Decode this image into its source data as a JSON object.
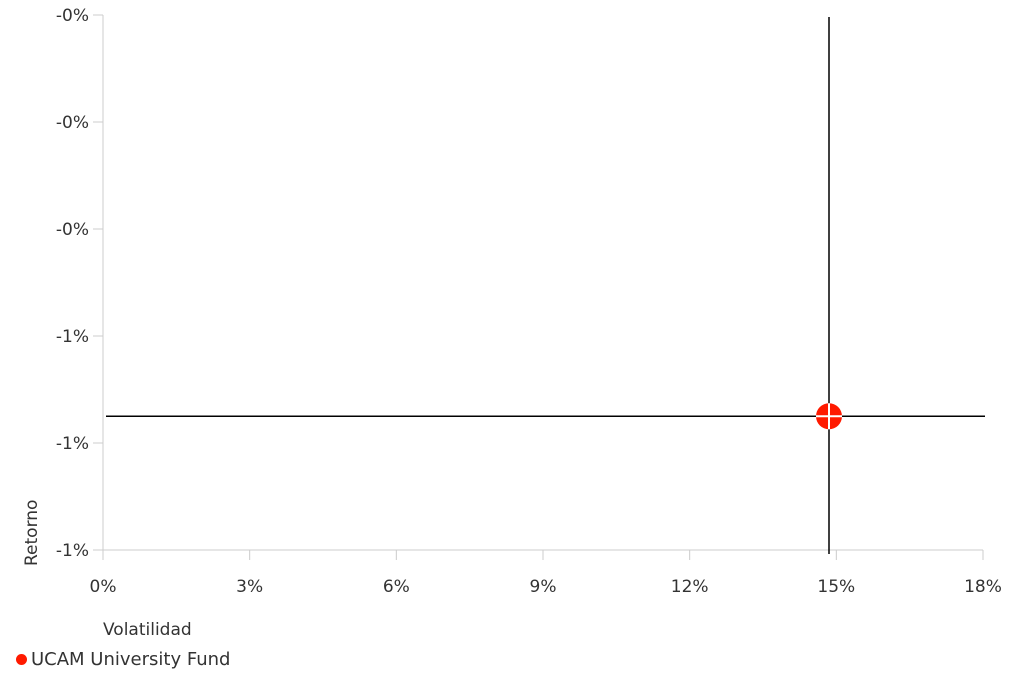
{
  "chart_data": {
    "type": "scatter",
    "xlabel": "Volatilidad",
    "ylabel": "Retorno",
    "x_ticks": [
      0,
      3,
      6,
      9,
      12,
      15,
      18
    ],
    "x_tick_labels": [
      "0%",
      "3%",
      "6%",
      "9%",
      "12%",
      "15%",
      "18%"
    ],
    "y_tick_labels": [
      "-0%",
      "-0%",
      "-0%",
      "-1%",
      "-1%",
      "-1%"
    ],
    "xlim": [
      0,
      18
    ],
    "ylim": [
      -1.0,
      0.0
    ],
    "series": [
      {
        "name": "UCAM University Fund",
        "color": "#ff1a00",
        "points": [
          {
            "x": 14.85,
            "y": -0.75
          }
        ]
      }
    ],
    "crosshair": true,
    "grid": false,
    "legend_position": "bottom-left"
  },
  "legend": {
    "items": [
      {
        "label": "UCAM University Fund",
        "color": "#ff1a00"
      }
    ]
  }
}
